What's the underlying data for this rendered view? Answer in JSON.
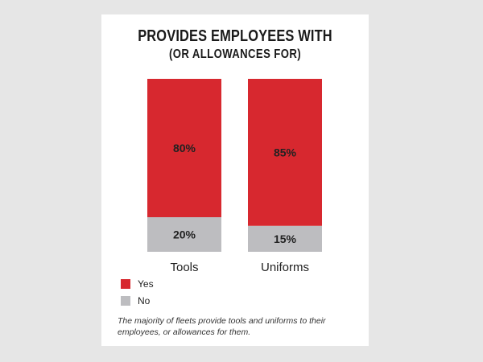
{
  "header": {
    "title": "PROVIDES EMPLOYEES WITH",
    "subtitle": "(OR ALLOWANCES FOR)"
  },
  "legend": {
    "items": [
      {
        "label": "Yes",
        "color": "#d7282f"
      },
      {
        "label": "No",
        "color": "#bdbdc0"
      }
    ]
  },
  "caption": "The majority of fleets provide tools and uniforms to their employees, or allowances for them.",
  "chart_data": {
    "type": "bar",
    "stacked": true,
    "categories": [
      "Tools",
      "Uniforms"
    ],
    "series": [
      {
        "name": "Yes",
        "values": [
          80,
          85
        ],
        "labels": [
          "80%",
          "85%"
        ],
        "color": "#d7282f"
      },
      {
        "name": "No",
        "values": [
          20,
          15
        ],
        "labels": [
          "20%",
          "15%"
        ],
        "color": "#bdbdc0"
      }
    ],
    "ylim": [
      0,
      100
    ],
    "title": "PROVIDES EMPLOYEES WITH",
    "subtitle": "(OR ALLOWANCES FOR)",
    "legend_position": "bottom-left",
    "grid": false
  }
}
